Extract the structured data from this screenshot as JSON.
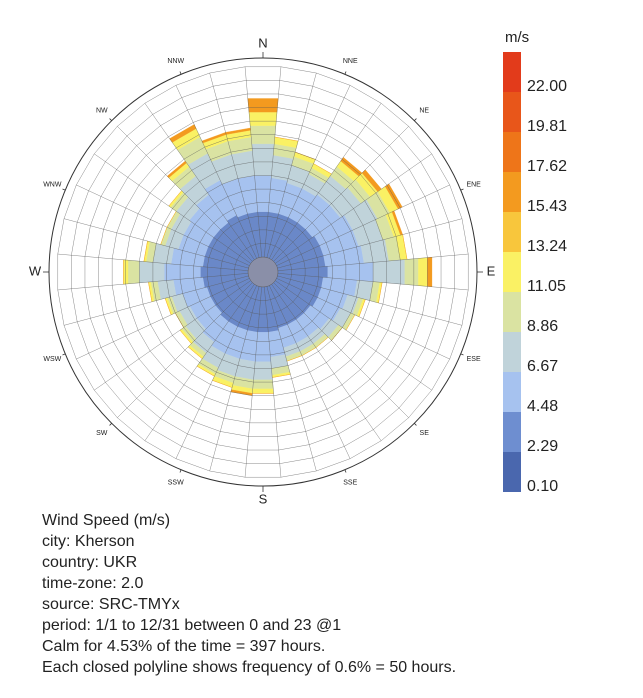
{
  "chart_data": {
    "type": "windrose",
    "x": [
      0,
      10,
      20,
      30,
      40,
      50,
      60,
      70,
      80,
      90,
      100,
      110,
      120,
      130,
      140,
      150,
      160,
      170,
      180,
      190,
      200,
      210,
      220,
      230,
      240,
      250,
      260,
      270,
      280,
      290,
      300,
      310,
      320,
      330,
      340,
      350
    ],
    "series": [
      {
        "color": "#6a88c8",
        "values": [
          2.0,
          2.0,
          2.0,
          2.0,
          2.0,
          2.0,
          2.1,
          2.1,
          2.1,
          2.2,
          2.0,
          2.0,
          2.0,
          1.9,
          1.9,
          1.9,
          1.9,
          2.0,
          2.0,
          2.0,
          2.0,
          2.0,
          2.0,
          1.9,
          1.9,
          1.9,
          2.0,
          2.1,
          2.0,
          2.0,
          2.0,
          2.0,
          2.0,
          2.1,
          2.0,
          2.0
        ]
      },
      {
        "color": "#a6c2ef",
        "values": [
          1.6,
          1.5,
          1.4,
          1.4,
          1.5,
          1.5,
          1.6,
          1.6,
          1.7,
          2.0,
          1.5,
          1.2,
          1.1,
          1.0,
          0.9,
          0.9,
          0.9,
          1.1,
          1.3,
          1.3,
          1.3,
          1.3,
          1.1,
          1.0,
          1.0,
          1.1,
          1.3,
          1.6,
          1.4,
          1.2,
          1.2,
          1.3,
          1.5,
          1.7,
          1.6,
          1.6
        ]
      },
      {
        "color": "#c0d3da",
        "values": [
          1.4,
          1.0,
          0.8,
          0.7,
          1.0,
          1.1,
          1.2,
          1.1,
          1.1,
          1.4,
          0.7,
          0.5,
          0.5,
          0.5,
          0.4,
          0.4,
          0.4,
          0.5,
          0.8,
          0.8,
          0.8,
          0.7,
          0.6,
          0.6,
          0.5,
          0.5,
          0.7,
          1.1,
          0.8,
          0.6,
          0.6,
          0.7,
          1.0,
          1.3,
          1.1,
          1.1
        ]
      },
      {
        "color": "#dae3a2",
        "values": [
          0.8,
          0.5,
          0.4,
          0.3,
          0.5,
          0.5,
          0.6,
          0.5,
          0.5,
          0.6,
          0.3,
          0.2,
          0.2,
          0.2,
          0.2,
          0.2,
          0.2,
          0.3,
          0.4,
          0.4,
          0.3,
          0.3,
          0.2,
          0.2,
          0.2,
          0.2,
          0.3,
          0.5,
          0.3,
          0.2,
          0.2,
          0.3,
          0.5,
          0.8,
          0.6,
          0.6
        ]
      },
      {
        "color": "#faf164",
        "values": [
          0.6,
          0.3,
          0.2,
          0.2,
          0.3,
          0.4,
          0.4,
          0.3,
          0.3,
          0.4,
          0.1,
          0.1,
          0,
          0,
          0,
          0,
          0,
          0.1,
          0.2,
          0.2,
          0.2,
          0.1,
          0.1,
          0.1,
          0,
          0.1,
          0.1,
          0.2,
          0.1,
          0,
          0,
          0.1,
          0.2,
          0.4,
          0.3,
          0.3
        ]
      },
      {
        "color": "#f39a1f",
        "values": [
          0.6,
          0,
          0,
          0,
          0.2,
          0.2,
          0.2,
          0.1,
          0,
          0.2,
          0,
          0,
          0,
          0,
          0,
          0,
          0,
          0,
          0,
          0.1,
          0,
          0,
          0,
          0,
          0,
          0,
          0,
          0,
          0,
          0,
          0,
          0,
          0.1,
          0.2,
          0.1,
          0.1
        ]
      }
    ],
    "rlim": [
      0,
      8.4
    ],
    "rticks": [
      0.6,
      1.2,
      1.8,
      2.4,
      3.0,
      3.6,
      4.2,
      4.8,
      5.4,
      6.0,
      6.6,
      7.2,
      7.8,
      8.4
    ],
    "xticks": [
      {
        "value": 0,
        "label": "N"
      },
      {
        "value": 22.5,
        "label": "NNE"
      },
      {
        "value": 45,
        "label": "NE"
      },
      {
        "value": 67.5,
        "label": "ENE"
      },
      {
        "value": 90,
        "label": "E"
      },
      {
        "value": 112.5,
        "label": "ESE"
      },
      {
        "value": 135,
        "label": "SE"
      },
      {
        "value": 157.5,
        "label": "SSE"
      },
      {
        "value": 180,
        "label": "S"
      },
      {
        "value": 202.5,
        "label": "SSW"
      },
      {
        "value": 225,
        "label": "SW"
      },
      {
        "value": 247.5,
        "label": "WSW"
      },
      {
        "value": 270,
        "label": "W"
      },
      {
        "value": 292.5,
        "label": "WNW"
      },
      {
        "value": 315,
        "label": "NW"
      },
      {
        "value": 337.5,
        "label": "NNW"
      }
    ],
    "colorbar": {
      "title": "m/s",
      "colors": [
        "#4a67ae",
        "#6e8ed0",
        "#a6c2ef",
        "#c0d3da",
        "#dae3a2",
        "#faf164",
        "#f8c63c",
        "#f39a1f",
        "#ee7519",
        "#e8561a",
        "#e23b1b"
      ],
      "ticks": [
        {
          "value": 0.1,
          "label": "0.10"
        },
        2.29,
        4.48,
        6.67,
        8.86,
        11.05,
        13.24,
        15.43,
        17.62,
        19.81,
        {
          "value": 22,
          "label": "22.00"
        }
      ]
    },
    "description": [
      "Wind Speed (m/s)",
      "city: Kherson",
      "country: UKR",
      "time-zone: 2.0",
      "source: SRC-TMYx",
      "period: 1/1 to 12/31 between 0 and 23 @1",
      "Calm for 4.53% of the time = 397 hours.",
      "Each closed polyline shows frequency of 0.6% = 50 hours."
    ]
  }
}
